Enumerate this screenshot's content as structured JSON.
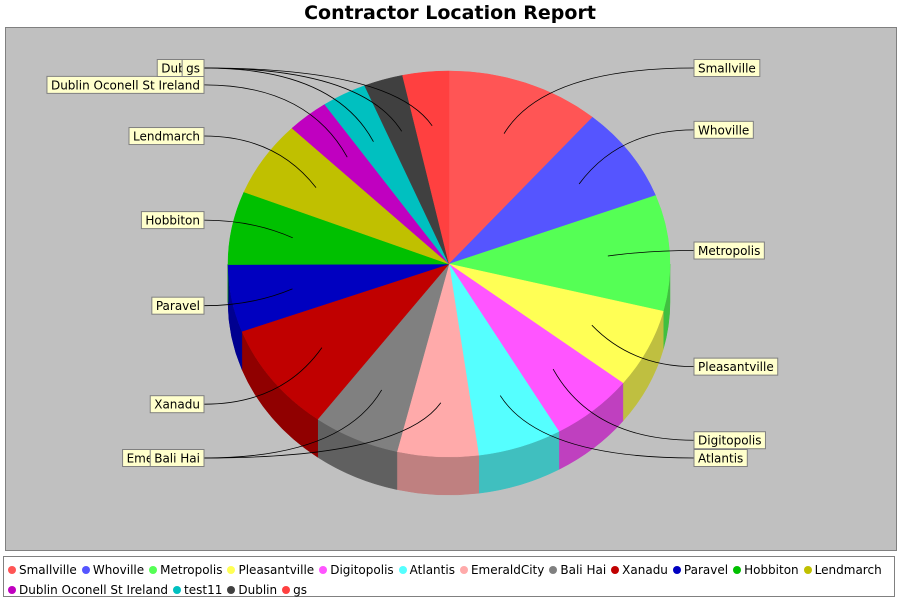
{
  "chart_data": {
    "type": "pie",
    "title": "Contractor Location Report",
    "style": "3d",
    "legend_position": "bottom",
    "series": [
      {
        "name": "Smallville",
        "value": 11.0,
        "color": "#ff5555"
      },
      {
        "name": "Whoville",
        "value": 7.8,
        "color": "#5555ff"
      },
      {
        "name": "Metropolis",
        "value": 9.5,
        "color": "#55ff55"
      },
      {
        "name": "Pleasantville",
        "value": 6.5,
        "color": "#ffff55"
      },
      {
        "name": "Digitopolis",
        "value": 6.0,
        "color": "#ff55ff"
      },
      {
        "name": "Atlantis",
        "value": 6.0,
        "color": "#55ffff"
      },
      {
        "name": "EmeraldCity",
        "value": 5.8,
        "color": "#ffaaaa"
      },
      {
        "name": "Bali Hai",
        "value": 6.2,
        "color": "#808080"
      },
      {
        "name": "Xanadu",
        "value": 9.0,
        "color": "#c00000"
      },
      {
        "name": "Paravel",
        "value": 5.5,
        "color": "#0000c0"
      },
      {
        "name": "Hobbiton",
        "value": 6.0,
        "color": "#00c000"
      },
      {
        "name": "Lendmarch",
        "value": 6.2,
        "color": "#c0c000"
      },
      {
        "name": "Dublin Oconell St Ireland",
        "value": 3.0,
        "color": "#c000c0"
      },
      {
        "name": "test11",
        "value": 3.2,
        "color": "#00c0c0"
      },
      {
        "name": "Dublin",
        "value": 2.8,
        "color": "#404040"
      },
      {
        "name": "gs",
        "value": 3.3,
        "color": "#ff4040"
      }
    ]
  }
}
